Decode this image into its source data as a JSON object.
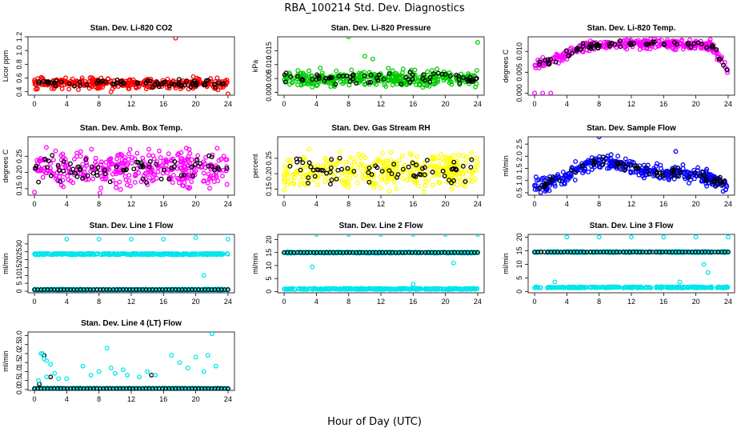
{
  "page": {
    "title": "RBA_100214  Std. Dev. Diagnostics",
    "x_label": "Hour of Day (UTC)"
  },
  "chart_data": [
    {
      "type": "scatter",
      "title": "Stan. Dev. Li-820 CO2",
      "ylabel": "Licor ppm",
      "xlim": [
        0,
        24
      ],
      "ylim": [
        0.35,
        1.2
      ],
      "xticks": [
        0,
        4,
        8,
        12,
        16,
        20,
        24
      ],
      "yticks": [
        0.4,
        0.6,
        0.8,
        1.0,
        1.2
      ],
      "ytick_labels": [
        "0.4",
        "0.6",
        "0.8",
        "1.0",
        "1.2"
      ],
      "colors": [
        "#ff0000",
        "#000000"
      ],
      "trend": [
        [
          0,
          0.52
        ],
        [
          24,
          0.52
        ]
      ],
      "spread": 0.045,
      "outliers": [
        [
          17.5,
          1.18
        ],
        [
          19.7,
          0.62
        ],
        [
          24,
          0.37
        ],
        [
          9.5,
          0.4
        ]
      ],
      "seed": 11
    },
    {
      "type": "scatter",
      "title": "Stan. Dev. Li-820 Pressure",
      "ylabel": "kPa",
      "xlim": [
        0,
        24
      ],
      "ylim": [
        -0.001,
        0.02
      ],
      "xticks": [
        0,
        4,
        8,
        12,
        16,
        20,
        24
      ],
      "yticks": [
        0.0,
        0.005,
        0.01,
        0.015
      ],
      "ytick_labels": [
        "0.000",
        "0.005",
        "0.010",
        "0.015"
      ],
      "colors": [
        "#00cc00",
        "#000000"
      ],
      "trend": [
        [
          0,
          0.005
        ],
        [
          24,
          0.005
        ]
      ],
      "spread": 0.0018,
      "outliers": [
        [
          8,
          0.02
        ],
        [
          24,
          0.018
        ],
        [
          10,
          0.013
        ],
        [
          11,
          0.012
        ]
      ],
      "seed": 23
    },
    {
      "type": "scatter",
      "title": "Stan. Dev. Li-820 Temp.",
      "ylabel": "degrees C",
      "xlim": [
        0,
        24
      ],
      "ylim": [
        -0.0005,
        0.0135
      ],
      "xticks": [
        0,
        4,
        8,
        12,
        16,
        20,
        24
      ],
      "yticks": [
        0.0,
        0.005,
        0.01
      ],
      "ytick_labels": [
        "0.000",
        "0.005",
        "0.010"
      ],
      "colors": [
        "#ff00ff",
        "#000000"
      ],
      "trend": [
        [
          0,
          0.0065
        ],
        [
          2,
          0.0075
        ],
        [
          4,
          0.0095
        ],
        [
          6,
          0.0112
        ],
        [
          10,
          0.0117
        ],
        [
          16,
          0.0119
        ],
        [
          20,
          0.0115
        ],
        [
          22,
          0.0113
        ],
        [
          24,
          0.005
        ]
      ],
      "spread": 0.0007,
      "outliers": [
        [
          0,
          0
        ],
        [
          1,
          0
        ],
        [
          2,
          0
        ]
      ],
      "seed": 37
    },
    {
      "type": "scatter",
      "title": "Stan. Dev. Amb. Box Temp.",
      "ylabel": "degrees C",
      "xlim": [
        0,
        24
      ],
      "ylim": [
        0.13,
        0.31
      ],
      "xticks": [
        0,
        4,
        8,
        12,
        16,
        20,
        24
      ],
      "yticks": [
        0.15,
        0.2,
        0.25
      ],
      "ytick_labels": [
        "0.15",
        "0.20",
        "0.25"
      ],
      "colors": [
        "#ff00ff",
        "#000000"
      ],
      "trend": [
        [
          0,
          0.21
        ],
        [
          24,
          0.21
        ]
      ],
      "spread": 0.035,
      "outliers": [],
      "seed": 41
    },
    {
      "type": "scatter",
      "title": "Stan. Dev. Gas Stream RH",
      "ylabel": "percent",
      "xlim": [
        0,
        24
      ],
      "ylim": [
        0.13,
        0.32
      ],
      "xticks": [
        0,
        4,
        8,
        12,
        16,
        20,
        24
      ],
      "yticks": [
        0.15,
        0.2,
        0.25
      ],
      "ytick_labels": [
        "0.15",
        "0.20",
        "0.25"
      ],
      "colors": [
        "#ffff00",
        "#000000"
      ],
      "trend": [
        [
          0,
          0.21
        ],
        [
          24,
          0.21
        ]
      ],
      "spread": 0.035,
      "outliers": [],
      "seed": 53
    },
    {
      "type": "scatter",
      "title": "Stan. Dev. Sample Flow",
      "ylabel": "ml/min",
      "xlim": [
        0,
        24
      ],
      "ylim": [
        0.4,
        2.8
      ],
      "xticks": [
        0,
        4,
        8,
        12,
        16,
        20,
        24
      ],
      "yticks": [
        0.5,
        1.0,
        1.5,
        2.0,
        2.5
      ],
      "ytick_labels": [
        "0.5",
        "1.0",
        "1.5",
        "2.0",
        "2.5"
      ],
      "colors": [
        "#0000ff",
        "#000000"
      ],
      "trend": [
        [
          0,
          0.8
        ],
        [
          2,
          0.9
        ],
        [
          4,
          1.2
        ],
        [
          6,
          1.6
        ],
        [
          8,
          1.8
        ],
        [
          10,
          1.7
        ],
        [
          12,
          1.6
        ],
        [
          14,
          1.35
        ],
        [
          18,
          1.3
        ],
        [
          20,
          1.25
        ],
        [
          24,
          0.85
        ]
      ],
      "spread": 0.18,
      "outliers": [
        [
          8,
          2.8
        ],
        [
          17.5,
          2.2
        ]
      ],
      "seed": 67
    },
    {
      "type": "scatter",
      "title": "Stan. Dev. Line 1 Flow",
      "ylabel": "ml/min",
      "xlim": [
        0,
        24
      ],
      "ylim": [
        -1,
        36
      ],
      "xticks": [
        0,
        4,
        8,
        12,
        16,
        20,
        24
      ],
      "yticks": [
        0,
        5,
        10,
        15,
        20,
        25,
        30
      ],
      "ytick_labels": [
        "0",
        "5",
        "10",
        "15",
        "20",
        "25",
        "30"
      ],
      "colors": [
        "#00e5ee",
        "#000000"
      ],
      "band_hi": 23.5,
      "band_lo": 1.0,
      "bands": "hi-cyan",
      "outliers": [
        [
          4,
          33
        ],
        [
          8,
          33
        ],
        [
          12,
          33
        ],
        [
          16,
          33
        ],
        [
          20,
          34
        ],
        [
          24,
          33
        ],
        [
          21,
          10
        ],
        [
          12,
          23
        ]
      ],
      "seed": 71
    },
    {
      "type": "scatter",
      "title": "Stan. Dev. Line 2 Flow",
      "ylabel": "ml/min",
      "xlim": [
        0,
        24
      ],
      "ylim": [
        -0.5,
        22
      ],
      "xticks": [
        0,
        4,
        8,
        12,
        16,
        20,
        24
      ],
      "yticks": [
        0,
        5,
        10,
        15,
        20
      ],
      "ytick_labels": [
        "0",
        "5",
        "10",
        "15",
        "20"
      ],
      "colors": [
        "#00e5ee",
        "#000000"
      ],
      "band_hi": 15.0,
      "band_lo": 1.0,
      "bands": "hi-black",
      "outliers": [
        [
          4,
          22
        ],
        [
          8,
          22
        ],
        [
          12,
          22
        ],
        [
          16,
          22
        ],
        [
          20,
          22
        ],
        [
          24,
          22
        ],
        [
          21,
          11
        ],
        [
          3.5,
          9.5
        ],
        [
          16,
          2.8
        ]
      ],
      "seed": 83
    },
    {
      "type": "scatter",
      "title": "Stan. Dev. Line 3 Flow",
      "ylabel": "ml/min",
      "xlim": [
        0,
        24
      ],
      "ylim": [
        -0.5,
        21
      ],
      "xticks": [
        0,
        4,
        8,
        12,
        16,
        20,
        24
      ],
      "yticks": [
        0,
        5,
        10,
        15,
        20
      ],
      "ytick_labels": [
        "0",
        "5",
        "10",
        "15",
        "20"
      ],
      "colors": [
        "#00e5ee",
        "#000000"
      ],
      "band_hi": 14.5,
      "band_lo": 1.5,
      "bands": "hi-black",
      "outliers": [
        [
          4,
          20
        ],
        [
          8,
          20
        ],
        [
          12,
          20
        ],
        [
          16,
          20
        ],
        [
          20,
          20
        ],
        [
          24,
          20
        ],
        [
          21,
          10
        ],
        [
          21.5,
          7
        ],
        [
          2.5,
          3.5
        ],
        [
          18,
          3.5
        ]
      ],
      "seed": 97
    },
    {
      "type": "scatter",
      "title": "Stan. Dev. Line 4 (LT) Flow",
      "ylabel": "ml/min",
      "xlim": [
        0,
        24
      ],
      "ylim": [
        -0.05,
        3.2
      ],
      "xticks": [
        0,
        4,
        8,
        12,
        16,
        20,
        24
      ],
      "yticks": [
        0.0,
        0.5,
        1.0,
        1.5,
        2.0,
        2.5,
        3.0
      ],
      "ytick_labels": [
        "0.0",
        "0.5",
        "1.0",
        "1.5",
        "2.0",
        "2.5",
        "3.0"
      ],
      "colors": [
        "#00e5ee",
        "#000000"
      ],
      "band_hi": 0.05,
      "band_lo": 0.05,
      "bands": "line4",
      "outliers": [
        [
          1,
          2.0
        ],
        [
          1.2,
          1.7
        ],
        [
          1.5,
          1.6
        ],
        [
          2,
          1.4
        ],
        [
          2.5,
          0.9
        ],
        [
          3,
          0.6
        ],
        [
          4,
          0.6
        ],
        [
          6,
          1.3
        ],
        [
          7,
          0.8
        ],
        [
          8,
          1.0
        ],
        [
          9,
          2.3
        ],
        [
          9.5,
          1.2
        ],
        [
          10,
          0.9
        ],
        [
          11,
          1.1
        ],
        [
          11.5,
          0.8
        ],
        [
          13,
          0.7
        ],
        [
          14,
          1.0
        ],
        [
          15,
          0.8
        ],
        [
          17,
          1.9
        ],
        [
          18,
          1.5
        ],
        [
          19,
          1.2
        ],
        [
          20,
          1.8
        ],
        [
          21,
          1.0
        ],
        [
          21.5,
          1.9
        ],
        [
          22,
          3.1
        ],
        [
          22.5,
          1.3
        ],
        [
          0.5,
          0.5
        ],
        [
          1.5,
          0.7
        ],
        [
          0.8,
          2.0
        ]
      ],
      "seed": 101
    }
  ]
}
